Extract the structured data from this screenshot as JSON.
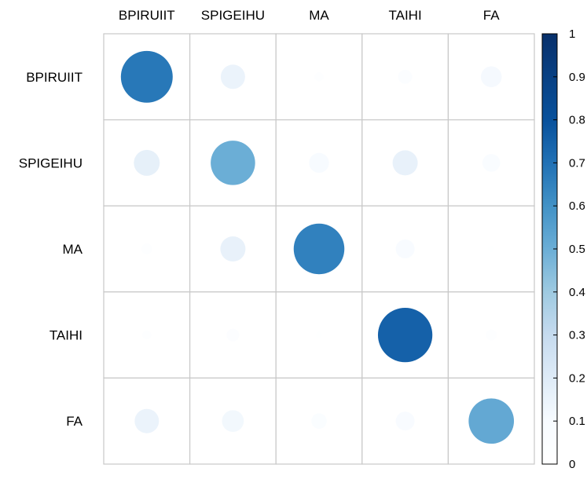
{
  "chart_data": {
    "type": "heatmap",
    "title": "",
    "columns": [
      "BPIRUIIT",
      "SPIGEIHU",
      "MA",
      "TAIHI",
      "FA"
    ],
    "rows": [
      "BPIRUIIT",
      "SPIGEIHU",
      "MA",
      "TAIHI",
      "FA"
    ],
    "values": [
      [
        0.68,
        0.15,
        0.02,
        0.05,
        0.11
      ],
      [
        0.17,
        0.5,
        0.1,
        0.16,
        0.08
      ],
      [
        0.03,
        0.16,
        0.65,
        0.09,
        0.01
      ],
      [
        0.02,
        0.04,
        0.01,
        0.75,
        0.03
      ],
      [
        0.15,
        0.12,
        0.06,
        0.09,
        0.52
      ]
    ],
    "colorbar": {
      "min": 0,
      "max": 1,
      "ticks": [
        "0",
        "0.1",
        "0.2",
        "0.3",
        "0.4",
        "0.5",
        "0.6",
        "0.7",
        "0.8",
        "0.9",
        "1"
      ],
      "color_low": "#ffffff",
      "color_high": "#08306b"
    },
    "grid": true
  }
}
